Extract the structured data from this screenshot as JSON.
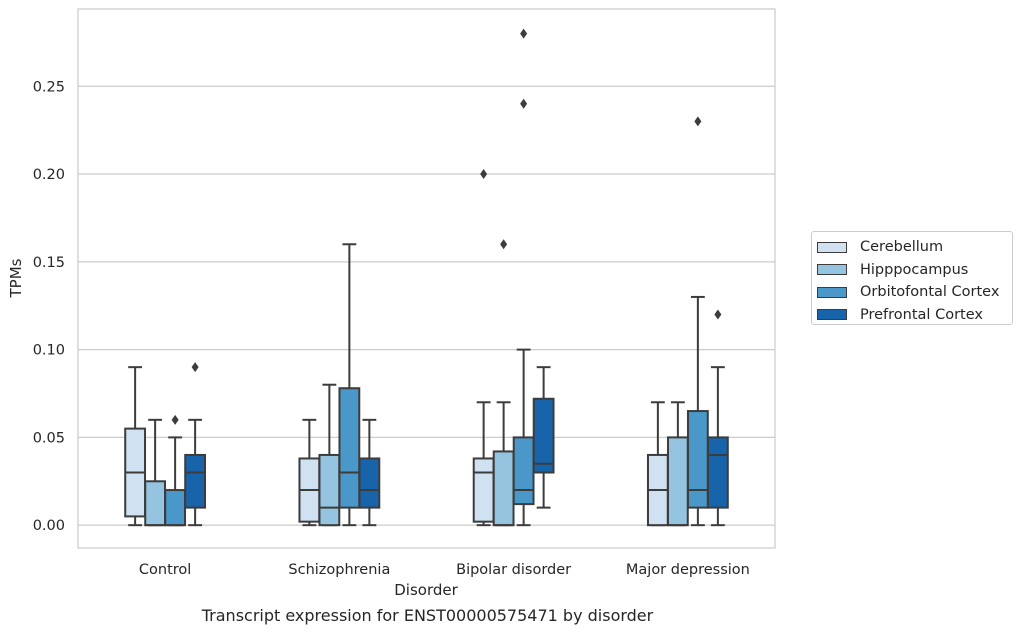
{
  "chart_data": {
    "type": "box",
    "caption": "Transcript expression for ENST00000575471 by disorder",
    "xlabel": "Disorder",
    "ylabel": "TPMs",
    "ylim": [
      -0.013,
      0.294
    ],
    "yticks": [
      "0.00",
      "0.05",
      "0.10",
      "0.15",
      "0.20",
      "0.25"
    ],
    "grid": true,
    "legend_position": "right",
    "categories": [
      "Control",
      "Schizophrenia",
      "Bipolar disorder",
      "Major depression"
    ],
    "series": [
      {
        "name": "Cerebellum",
        "color": "#d0e1f2",
        "boxes": [
          {
            "min": 0.0,
            "q1": 0.005,
            "median": 0.03,
            "q3": 0.055,
            "max": 0.09,
            "outliers": []
          },
          {
            "min": 0.0,
            "q1": 0.002,
            "median": 0.02,
            "q3": 0.038,
            "max": 0.06,
            "outliers": []
          },
          {
            "min": 0.0,
            "q1": 0.002,
            "median": 0.03,
            "q3": 0.038,
            "max": 0.07,
            "outliers": [
              0.2
            ]
          },
          {
            "min": 0.0,
            "q1": 0.0,
            "median": 0.02,
            "q3": 0.04,
            "max": 0.07,
            "outliers": []
          }
        ]
      },
      {
        "name": "Hipppocampus",
        "color": "#94c4df",
        "boxes": [
          {
            "min": 0.0,
            "q1": 0.0,
            "median": 0.0,
            "q3": 0.025,
            "max": 0.06,
            "outliers": []
          },
          {
            "min": 0.0,
            "q1": 0.0,
            "median": 0.01,
            "q3": 0.04,
            "max": 0.08,
            "outliers": []
          },
          {
            "min": 0.0,
            "q1": 0.0,
            "median": 0.0,
            "q3": 0.042,
            "max": 0.07,
            "outliers": [
              0.16
            ]
          },
          {
            "min": 0.0,
            "q1": 0.0,
            "median": 0.0,
            "q3": 0.05,
            "max": 0.07,
            "outliers": []
          }
        ]
      },
      {
        "name": "Orbitofontal Cortex",
        "color": "#4a98c9",
        "boxes": [
          {
            "min": 0.0,
            "q1": 0.0,
            "median": 0.0,
            "q3": 0.02,
            "max": 0.05,
            "outliers": [
              0.06
            ]
          },
          {
            "min": 0.0,
            "q1": 0.01,
            "median": 0.03,
            "q3": 0.078,
            "max": 0.16,
            "outliers": []
          },
          {
            "min": 0.0,
            "q1": 0.012,
            "median": 0.02,
            "q3": 0.05,
            "max": 0.1,
            "outliers": [
              0.24,
              0.28
            ]
          },
          {
            "min": 0.0,
            "q1": 0.01,
            "median": 0.02,
            "q3": 0.065,
            "max": 0.13,
            "outliers": [
              0.23
            ]
          }
        ]
      },
      {
        "name": "Prefrontal Cortex",
        "color": "#1764ab",
        "boxes": [
          {
            "min": 0.0,
            "q1": 0.01,
            "median": 0.03,
            "q3": 0.04,
            "max": 0.06,
            "outliers": [
              0.09
            ]
          },
          {
            "min": 0.0,
            "q1": 0.01,
            "median": 0.02,
            "q3": 0.038,
            "max": 0.06,
            "outliers": []
          },
          {
            "min": 0.01,
            "q1": 0.03,
            "median": 0.035,
            "q3": 0.072,
            "max": 0.09,
            "outliers": []
          },
          {
            "min": 0.0,
            "q1": 0.01,
            "median": 0.04,
            "q3": 0.05,
            "max": 0.09,
            "outliers": [
              0.12
            ]
          }
        ]
      }
    ]
  }
}
